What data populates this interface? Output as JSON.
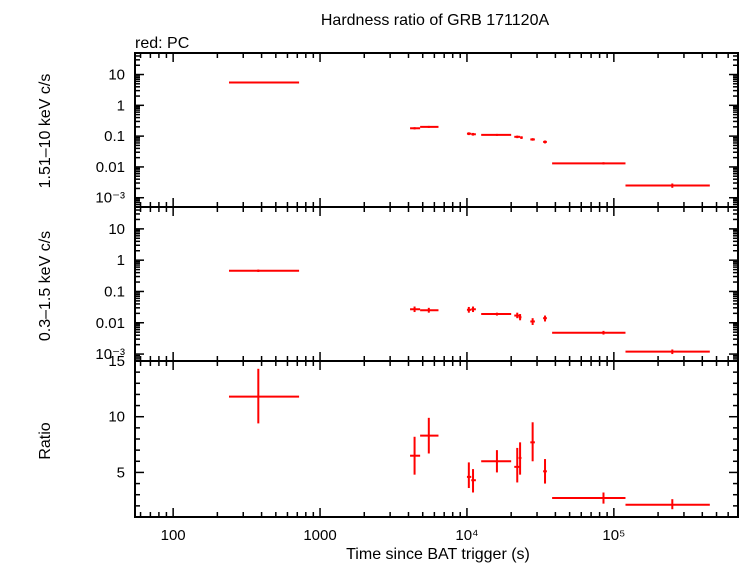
{
  "title": "Hardness ratio of GRB 171120A",
  "legend_note": "red: PC",
  "xlabel": "Time since BAT trigger (s)",
  "chart_data": [
    {
      "type": "scatter",
      "panel": "top",
      "ylabel": "1.51–10 keV c/s",
      "yscale": "log",
      "ylim": [
        0.0005,
        50
      ],
      "yticks": [
        {
          "v": 10,
          "t": "10"
        },
        {
          "v": 1,
          "t": "1"
        },
        {
          "v": 0.1,
          "t": "0.1"
        },
        {
          "v": 0.01,
          "t": "0.01"
        },
        {
          "v": 0.001,
          "t": "10⁻³"
        }
      ],
      "color": "#ff0000",
      "points": [
        {
          "x": 380,
          "y": 5.5,
          "xlo": 240,
          "xhi": 720,
          "ylo": 5.2,
          "yhi": 5.8
        },
        {
          "x": 4400,
          "y": 0.18,
          "xlo": 4100,
          "xhi": 4800,
          "ylo": 0.165,
          "yhi": 0.195
        },
        {
          "x": 5500,
          "y": 0.2,
          "xlo": 4800,
          "xhi": 6400,
          "ylo": 0.185,
          "yhi": 0.215
        },
        {
          "x": 10300,
          "y": 0.12,
          "xlo": 10000,
          "xhi": 10700,
          "ylo": 0.108,
          "yhi": 0.133
        },
        {
          "x": 11000,
          "y": 0.115,
          "xlo": 10700,
          "xhi": 11500,
          "ylo": 0.104,
          "yhi": 0.127
        },
        {
          "x": 16000,
          "y": 0.11,
          "xlo": 12500,
          "xhi": 20000,
          "ylo": 0.102,
          "yhi": 0.118
        },
        {
          "x": 22000,
          "y": 0.095,
          "xlo": 21000,
          "xhi": 23000,
          "ylo": 0.086,
          "yhi": 0.104
        },
        {
          "x": 23500,
          "y": 0.09,
          "xlo": 23000,
          "xhi": 24000,
          "ylo": 0.081,
          "yhi": 0.099
        },
        {
          "x": 28000,
          "y": 0.078,
          "xlo": 27000,
          "xhi": 29000,
          "ylo": 0.071,
          "yhi": 0.086
        },
        {
          "x": 34000,
          "y": 0.065,
          "xlo": 33000,
          "xhi": 35000,
          "ylo": 0.058,
          "yhi": 0.072
        },
        {
          "x": 85000,
          "y": 0.013,
          "xlo": 38000,
          "xhi": 120000,
          "ylo": 0.012,
          "yhi": 0.0142
        },
        {
          "x": 250000,
          "y": 0.0025,
          "xlo": 120000,
          "xhi": 450000,
          "ylo": 0.0021,
          "yhi": 0.0029
        }
      ]
    },
    {
      "type": "scatter",
      "panel": "middle",
      "ylabel": "0.3–1.5 keV c/s",
      "yscale": "log",
      "ylim": [
        0.0006,
        50
      ],
      "yticks": [
        {
          "v": 10,
          "t": "10"
        },
        {
          "v": 1,
          "t": "1"
        },
        {
          "v": 0.1,
          "t": "0.1"
        },
        {
          "v": 0.01,
          "t": "0.01"
        },
        {
          "v": 0.001,
          "t": "10⁻³"
        }
      ],
      "color": "#ff0000",
      "points": [
        {
          "x": 380,
          "y": 0.46,
          "xlo": 240,
          "xhi": 720,
          "ylo": 0.42,
          "yhi": 0.5
        },
        {
          "x": 4400,
          "y": 0.027,
          "xlo": 4100,
          "xhi": 4800,
          "ylo": 0.022,
          "yhi": 0.033
        },
        {
          "x": 5500,
          "y": 0.025,
          "xlo": 4800,
          "xhi": 6400,
          "ylo": 0.021,
          "yhi": 0.03
        },
        {
          "x": 10300,
          "y": 0.026,
          "xlo": 10000,
          "xhi": 10700,
          "ylo": 0.021,
          "yhi": 0.032
        },
        {
          "x": 11000,
          "y": 0.027,
          "xlo": 10700,
          "xhi": 11500,
          "ylo": 0.022,
          "yhi": 0.033
        },
        {
          "x": 16000,
          "y": 0.019,
          "xlo": 12500,
          "xhi": 20000,
          "ylo": 0.017,
          "yhi": 0.021
        },
        {
          "x": 22000,
          "y": 0.017,
          "xlo": 21000,
          "xhi": 23000,
          "ylo": 0.014,
          "yhi": 0.021
        },
        {
          "x": 23000,
          "y": 0.015,
          "xlo": 22500,
          "xhi": 23500,
          "ylo": 0.012,
          "yhi": 0.019
        },
        {
          "x": 28000,
          "y": 0.011,
          "xlo": 27000,
          "xhi": 29000,
          "ylo": 0.0085,
          "yhi": 0.014
        },
        {
          "x": 34000,
          "y": 0.014,
          "xlo": 33000,
          "xhi": 35000,
          "ylo": 0.011,
          "yhi": 0.017
        },
        {
          "x": 85000,
          "y": 0.0048,
          "xlo": 38000,
          "xhi": 120000,
          "ylo": 0.0042,
          "yhi": 0.0055
        },
        {
          "x": 250000,
          "y": 0.0012,
          "xlo": 120000,
          "xhi": 450000,
          "ylo": 0.001,
          "yhi": 0.0014
        }
      ]
    },
    {
      "type": "scatter",
      "panel": "bottom",
      "ylabel": "Ratio",
      "yscale": "linear",
      "ylim": [
        1,
        15
      ],
      "yticks": [
        {
          "v": 15,
          "t": "15"
        },
        {
          "v": 10,
          "t": "10"
        },
        {
          "v": 5,
          "t": "5"
        }
      ],
      "xscale": "log",
      "xlim": [
        55,
        700000
      ],
      "xticks": [
        {
          "v": 100,
          "t": "100"
        },
        {
          "v": 1000,
          "t": "1000"
        },
        {
          "v": 10000,
          "t": "10⁴"
        },
        {
          "v": 100000,
          "t": "10⁵"
        }
      ],
      "color": "#ff0000",
      "points": [
        {
          "x": 380,
          "y": 11.8,
          "xlo": 240,
          "xhi": 720,
          "ylo": 9.4,
          "yhi": 14.3
        },
        {
          "x": 4400,
          "y": 6.5,
          "xlo": 4100,
          "xhi": 4800,
          "ylo": 4.8,
          "yhi": 8.2
        },
        {
          "x": 5500,
          "y": 8.3,
          "xlo": 4800,
          "xhi": 6400,
          "ylo": 6.7,
          "yhi": 9.9
        },
        {
          "x": 10300,
          "y": 4.6,
          "xlo": 10000,
          "xhi": 10700,
          "ylo": 3.6,
          "yhi": 5.9
        },
        {
          "x": 11000,
          "y": 4.3,
          "xlo": 10700,
          "xhi": 11500,
          "ylo": 3.2,
          "yhi": 5.3
        },
        {
          "x": 16000,
          "y": 6.0,
          "xlo": 12500,
          "xhi": 20000,
          "ylo": 5.0,
          "yhi": 7.0
        },
        {
          "x": 22000,
          "y": 5.5,
          "xlo": 21000,
          "xhi": 23000,
          "ylo": 4.1,
          "yhi": 7.2
        },
        {
          "x": 23000,
          "y": 6.3,
          "xlo": 22500,
          "xhi": 23500,
          "ylo": 4.8,
          "yhi": 7.7
        },
        {
          "x": 28000,
          "y": 7.7,
          "xlo": 27000,
          "xhi": 29000,
          "ylo": 6.0,
          "yhi": 9.5
        },
        {
          "x": 34000,
          "y": 5.1,
          "xlo": 33000,
          "xhi": 35000,
          "ylo": 4.0,
          "yhi": 6.2
        },
        {
          "x": 85000,
          "y": 2.7,
          "xlo": 38000,
          "xhi": 120000,
          "ylo": 2.2,
          "yhi": 3.2
        },
        {
          "x": 250000,
          "y": 2.1,
          "xlo": 120000,
          "xhi": 450000,
          "ylo": 1.7,
          "yhi": 2.6
        }
      ]
    }
  ]
}
